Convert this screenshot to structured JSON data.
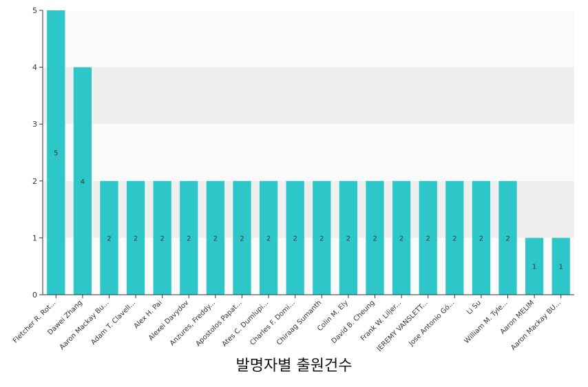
{
  "chart_data": {
    "type": "bar",
    "title": "발명자별 출원건수",
    "categories": [
      "Fletcher R. Rot...",
      "Dawei Zhang",
      "Aaron Mackay Bu...",
      "Adam T. Clavell...",
      "Alex H. Pai",
      "Alexei Davydov",
      "Anzures, Freddy...",
      "Apostolos Papat...",
      "Ates C. Dumlupi...",
      "Charles F. Domi...",
      "Chiraag Sumanth",
      "Colin M. Ely",
      "David B. Cheung",
      "Frank W. Liljer...",
      "JEREMY VANSLETT...",
      "Jose Antonio Gó...",
      "Li Su",
      "William M. Tyle...",
      "Aaron MELIM",
      "Aaron Mackay BU..."
    ],
    "values": [
      5,
      4,
      2,
      2,
      2,
      2,
      2,
      2,
      2,
      2,
      2,
      2,
      2,
      2,
      2,
      2,
      2,
      2,
      1,
      1
    ],
    "ylim": [
      0,
      5
    ],
    "yticks": [
      0,
      1,
      2,
      3,
      4,
      5
    ],
    "xlabel": "",
    "ylabel": "",
    "grid": "horizontal bands",
    "legend": "none",
    "bar_color": "#2ec7c9",
    "band_color": "#efefef",
    "axis_color": "#333333"
  }
}
